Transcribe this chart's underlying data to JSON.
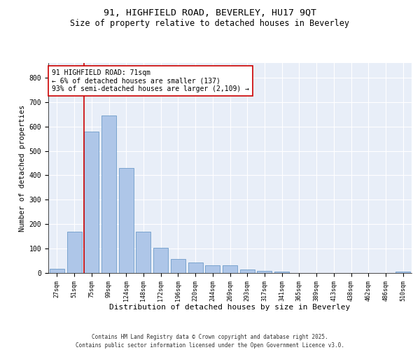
{
  "title_line1": "91, HIGHFIELD ROAD, BEVERLEY, HU17 9QT",
  "title_line2": "Size of property relative to detached houses in Beverley",
  "xlabel": "Distribution of detached houses by size in Beverley",
  "ylabel": "Number of detached properties",
  "categories": [
    "27sqm",
    "51sqm",
    "75sqm",
    "99sqm",
    "124sqm",
    "148sqm",
    "172sqm",
    "196sqm",
    "220sqm",
    "244sqm",
    "269sqm",
    "293sqm",
    "317sqm",
    "341sqm",
    "365sqm",
    "389sqm",
    "413sqm",
    "438sqm",
    "462sqm",
    "486sqm",
    "510sqm"
  ],
  "values": [
    18,
    168,
    580,
    645,
    430,
    170,
    103,
    57,
    43,
    32,
    32,
    13,
    8,
    5,
    0,
    0,
    0,
    0,
    0,
    0,
    6
  ],
  "bar_color": "#aec6e8",
  "bar_edge_color": "#5a8fc2",
  "background_color": "#e8eef8",
  "grid_color": "#ffffff",
  "vline_color": "#cc0000",
  "annotation_text": "91 HIGHFIELD ROAD: 71sqm\n← 6% of detached houses are smaller (137)\n93% of semi-detached houses are larger (2,109) →",
  "annotation_box_edge": "#cc0000",
  "ylim": [
    0,
    860
  ],
  "yticks": [
    0,
    100,
    200,
    300,
    400,
    500,
    600,
    700,
    800
  ],
  "footer_line1": "Contains HM Land Registry data © Crown copyright and database right 2025.",
  "footer_line2": "Contains public sector information licensed under the Open Government Licence v3.0.",
  "title_fontsize": 9.5,
  "subtitle_fontsize": 8.5,
  "xlabel_fontsize": 8,
  "ylabel_fontsize": 7.5,
  "annotation_fontsize": 7,
  "tick_fontsize": 6,
  "ytick_fontsize": 7,
  "footer_fontsize": 5.5
}
